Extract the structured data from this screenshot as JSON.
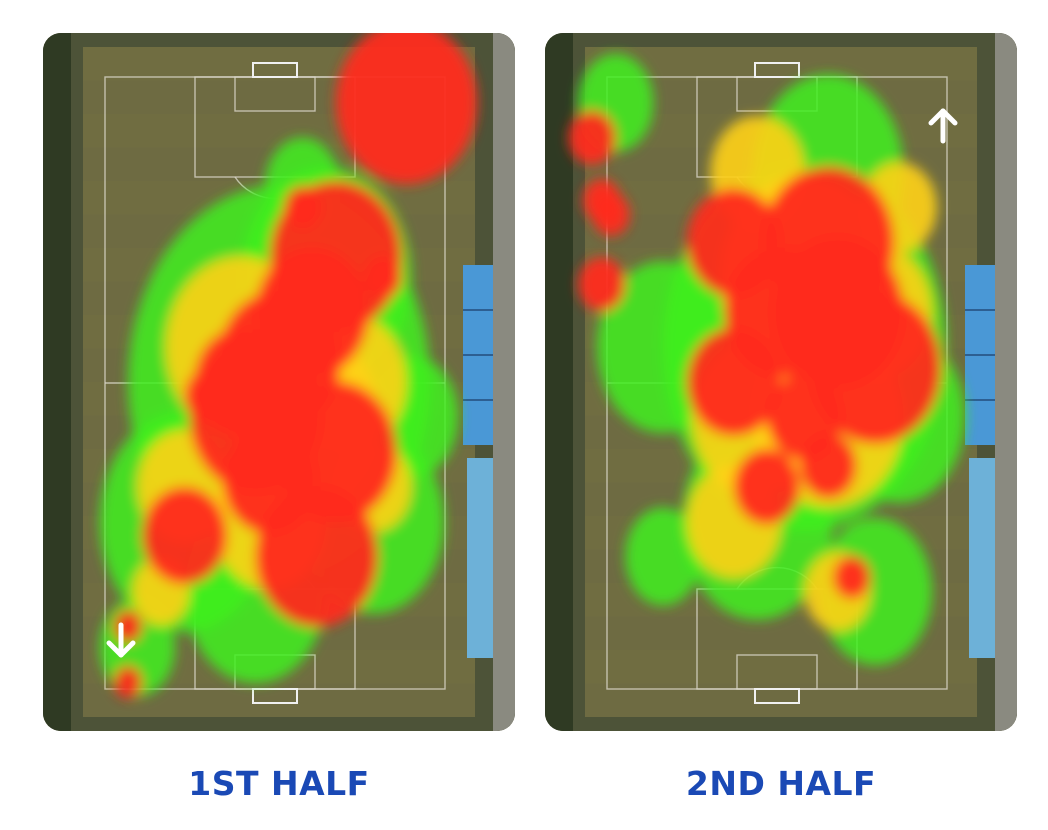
{
  "colors": {
    "label_text": "#1a49b5",
    "heat_high": "#ff2a1a",
    "heat_mid": "#ffd21a",
    "heat_low": "#3ef01c",
    "turf": "#6e6b42",
    "stand_roof": "#4a98d6",
    "arrow": "#ffffff"
  },
  "panels": [
    {
      "label": "1ST HALF",
      "direction_arrow": "arrow-down-icon",
      "red_blobs": [
        [
          77,
          10,
          15
        ],
        [
          62,
          32,
          14
        ],
        [
          42,
          50,
          10
        ],
        [
          50,
          47,
          13
        ],
        [
          45,
          55,
          14
        ],
        [
          57,
          40,
          12
        ],
        [
          62,
          60,
          13
        ],
        [
          48,
          64,
          10
        ],
        [
          30,
          72,
          9
        ],
        [
          58,
          75,
          13
        ],
        [
          18,
          93,
          3
        ],
        [
          18,
          85,
          3
        ],
        [
          55,
          25,
          4
        ],
        [
          72,
          35,
          4
        ],
        [
          35,
          52,
          5
        ]
      ],
      "yellow_blobs": [
        [
          42,
          45,
          16
        ],
        [
          55,
          55,
          16
        ],
        [
          48,
          70,
          12
        ],
        [
          65,
          50,
          12
        ],
        [
          30,
          65,
          10
        ],
        [
          70,
          65,
          8
        ],
        [
          25,
          80,
          6
        ]
      ],
      "green_blobs": [
        [
          50,
          50,
          32
        ],
        [
          60,
          35,
          18
        ],
        [
          30,
          70,
          18
        ],
        [
          45,
          80,
          15
        ],
        [
          70,
          70,
          15
        ],
        [
          20,
          88,
          8
        ],
        [
          78,
          55,
          10
        ],
        [
          55,
          22,
          8
        ]
      ]
    },
    {
      "label": "2ND HALF",
      "direction_arrow": "arrow-up-icon",
      "red_blobs": [
        [
          10,
          15,
          5
        ],
        [
          12,
          24,
          4
        ],
        [
          14,
          26,
          4
        ],
        [
          12,
          36,
          5
        ],
        [
          60,
          30,
          14
        ],
        [
          62,
          40,
          14
        ],
        [
          50,
          40,
          12
        ],
        [
          70,
          48,
          14
        ],
        [
          40,
          30,
          10
        ],
        [
          40,
          50,
          10
        ],
        [
          60,
          62,
          6
        ],
        [
          65,
          78,
          4
        ],
        [
          47,
          65,
          7
        ],
        [
          55,
          55,
          8
        ]
      ],
      "yellow_blobs": [
        [
          55,
          35,
          18
        ],
        [
          60,
          55,
          16
        ],
        [
          45,
          55,
          14
        ],
        [
          70,
          40,
          12
        ],
        [
          45,
          20,
          10
        ],
        [
          75,
          25,
          8
        ],
        [
          40,
          70,
          10
        ],
        [
          62,
          80,
          7
        ]
      ],
      "green_blobs": [
        [
          55,
          45,
          30
        ],
        [
          60,
          20,
          16
        ],
        [
          45,
          70,
          16
        ],
        [
          75,
          55,
          14
        ],
        [
          25,
          45,
          14
        ],
        [
          15,
          10,
          8
        ],
        [
          70,
          80,
          12
        ],
        [
          25,
          75,
          8
        ]
      ]
    }
  ]
}
